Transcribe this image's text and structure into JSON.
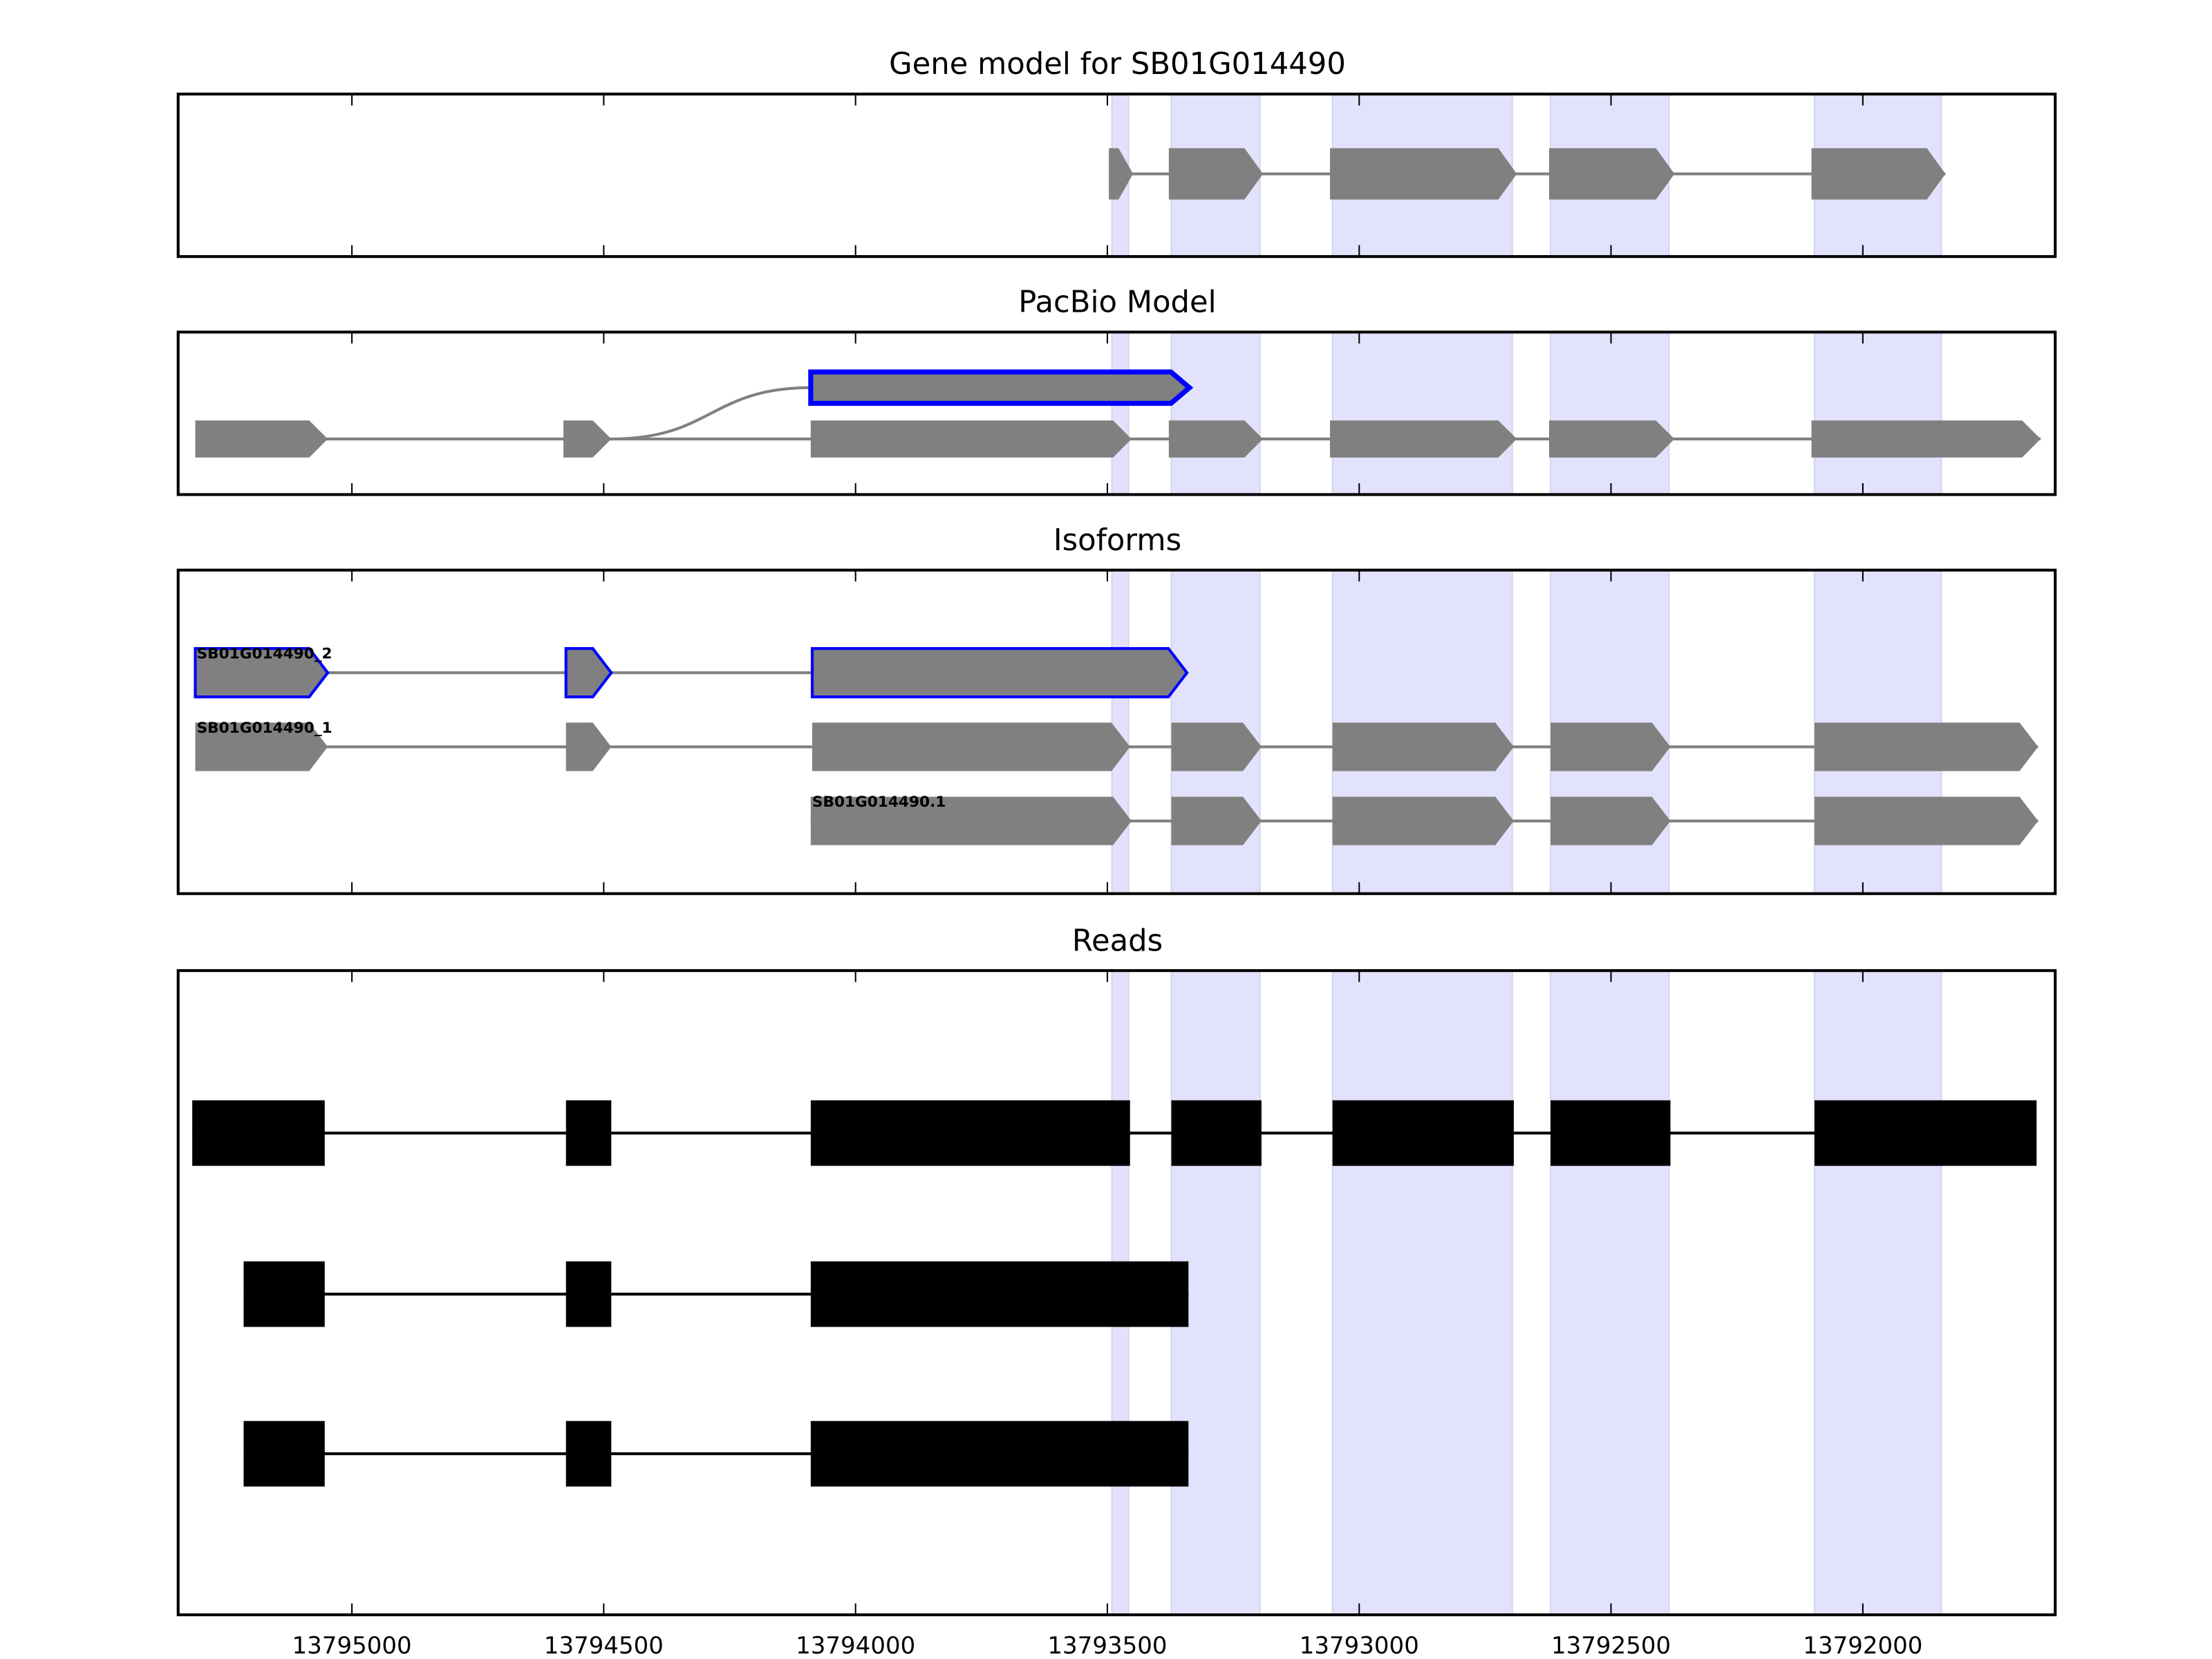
{
  "chart_data": {
    "type": "gene-structure",
    "xlabel": "",
    "xlim": [
      13795345,
      13791618
    ],
    "x_reversed": true,
    "xticks": [
      13795000,
      13794500,
      13794000,
      13793500,
      13793000,
      13792500,
      13792000
    ],
    "xtick_labels": [
      "13795000",
      "13794500",
      "13794000",
      "13793500",
      "13793000",
      "13792500",
      "13792000"
    ],
    "highlight_color": "#e2e2fc",
    "feature_color": "#808080",
    "selected_color": "#0000ff",
    "read_color": "#000000",
    "exon_highlights": [
      [
        13793491,
        13793458
      ],
      [
        13793373,
        13793197
      ],
      [
        13793053,
        13792696
      ],
      [
        13792620,
        13792385
      ],
      [
        13792096,
        13791844
      ]
    ],
    "panels": [
      {
        "title": "Gene model for SB01G014490",
        "tracks": [
          {
            "exons": [
              [
                13793497,
                13793449
              ],
              [
                13793378,
                13793191
              ],
              [
                13793058,
                13792687
              ],
              [
                13792623,
                13792374
              ],
              [
                13792102,
                13791836
              ]
            ],
            "selected": false
          }
        ]
      },
      {
        "title": "PacBio Model",
        "tracks": [
          {
            "exons": [
              [
                13794089,
                13793337
              ]
            ],
            "selected": true,
            "branch_from": 13794485
          },
          {
            "exons": [
              [
                13795311,
                13795048
              ],
              [
                13794580,
                13794485
              ],
              [
                13794089,
                13793452
              ],
              [
                13793378,
                13793191
              ],
              [
                13793058,
                13792687
              ],
              [
                13792623,
                13792374
              ],
              [
                13792102,
                13791647
              ]
            ],
            "selected": false
          }
        ]
      },
      {
        "title": "Isoforms",
        "tracks": [
          {
            "label": "SB01G014490_2",
            "exons": [
              [
                13795311,
                13795048
              ],
              [
                13794575,
                13794485
              ],
              [
                13794086,
                13793342
              ]
            ],
            "selected": true
          },
          {
            "label": "SB01G014490_1",
            "exons": [
              [
                13795311,
                13795048
              ],
              [
                13794575,
                13794485
              ],
              [
                13794086,
                13793455
              ],
              [
                13793373,
                13793194
              ],
              [
                13793053,
                13792693
              ],
              [
                13792620,
                13792382
              ],
              [
                13792096,
                13791652
              ]
            ],
            "selected": false
          },
          {
            "label": "SB01G014490.1",
            "exons": [
              [
                13794089,
                13793452
              ],
              [
                13793373,
                13793194
              ],
              [
                13793053,
                13792693
              ],
              [
                13792620,
                13792382
              ],
              [
                13792096,
                13791652
              ]
            ],
            "selected": false
          }
        ]
      },
      {
        "title": "Reads",
        "tracks": [
          {
            "exons": [
              [
                13795317,
                13795054
              ],
              [
                13794575,
                13794485
              ],
              [
                13794089,
                13793455
              ],
              [
                13793373,
                13793194
              ],
              [
                13793053,
                13792693
              ],
              [
                13792620,
                13792382
              ],
              [
                13792096,
                13791655
              ]
            ]
          },
          {
            "exons": [
              [
                13795215,
                13795054
              ],
              [
                13794575,
                13794485
              ],
              [
                13794089,
                13793339
              ]
            ]
          },
          {
            "exons": [
              [
                13795215,
                13795054
              ],
              [
                13794575,
                13794485
              ],
              [
                13794089,
                13793339
              ]
            ]
          }
        ]
      }
    ]
  }
}
